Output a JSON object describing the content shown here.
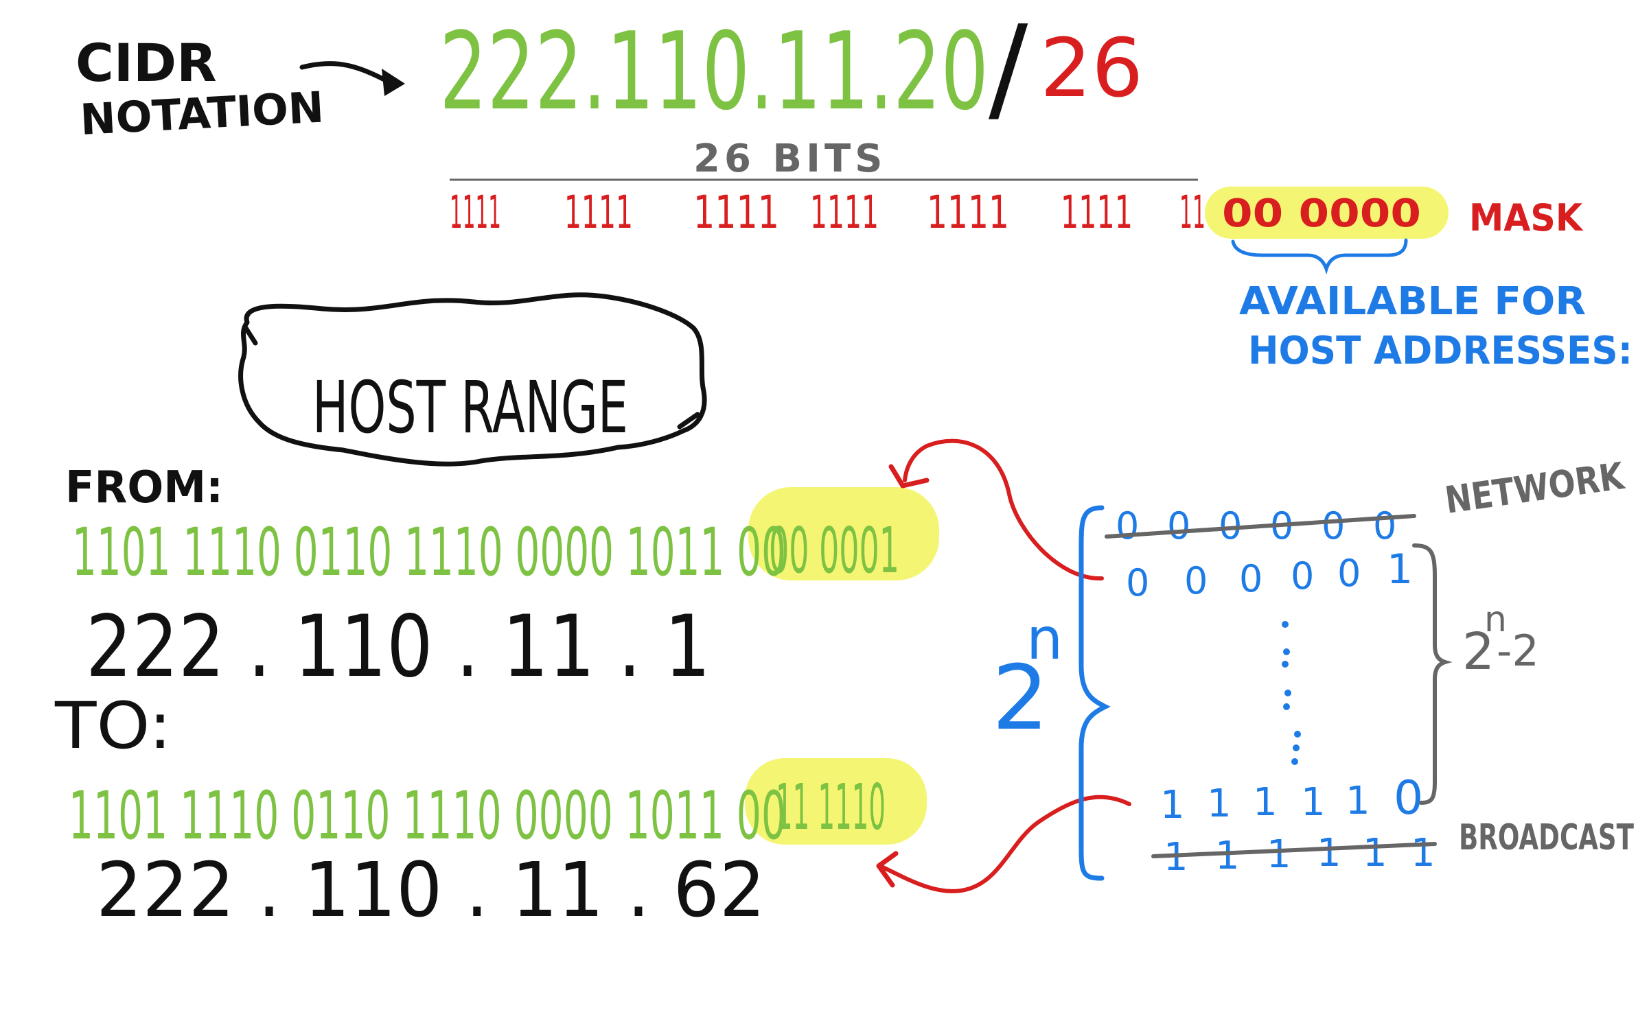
{
  "colors": {
    "ink": "#111111",
    "green": "#7dc242",
    "red": "#d81e1e",
    "blue": "#1e7be6",
    "gray": "#666666",
    "highlight": "#f2f55a"
  },
  "header": {
    "cidr_label_line1": "CIDR",
    "cidr_label_line2": "NOTATION",
    "ip_address": "222.110.11.20",
    "slash": "/",
    "prefix_length": "26"
  },
  "mask": {
    "bits_label": "26 BITS",
    "one_groups": [
      "1111",
      "1111",
      "1111",
      "1111",
      "1111",
      "1111"
    ],
    "trailing_ones": "11",
    "host_zeros": "00 0000",
    "mask_label": "MASK",
    "available_line1": "AVAILABLE FOR",
    "available_line2": "HOST ADDRESSES:"
  },
  "host_range": {
    "title": "HOST RANGE",
    "from_label": "FROM:",
    "from_binary_network": "1101 1110 0110 1110 0000 1011 00",
    "from_binary_host": "00 0001",
    "from_decimal": "222 . 110 . 11 . 1",
    "to_label": "TO:",
    "to_binary_network": "1101 1110 0110 1110 0000 1011 00",
    "to_binary_host": "11 1110",
    "to_decimal": "222 . 110 . 11 . 62"
  },
  "table": {
    "rows": [
      {
        "bits": [
          "0",
          "0",
          "0",
          "0",
          "0",
          "0"
        ],
        "struck": true
      },
      {
        "bits": [
          "0",
          "0",
          "0",
          "0",
          "0",
          "1"
        ],
        "struck": false
      },
      {
        "bits": [
          "1",
          "1",
          "1",
          "1",
          "1",
          "0"
        ],
        "struck": false
      },
      {
        "bits": [
          "1",
          "1",
          "1",
          "1",
          "1",
          "1"
        ],
        "struck": true
      }
    ],
    "network_label": "NETWORK",
    "broadcast_label": "BROADCAST",
    "total_base": "2",
    "total_exp": "n",
    "usable_base": "2",
    "usable_exp": "n",
    "usable_suffix": "-2"
  }
}
